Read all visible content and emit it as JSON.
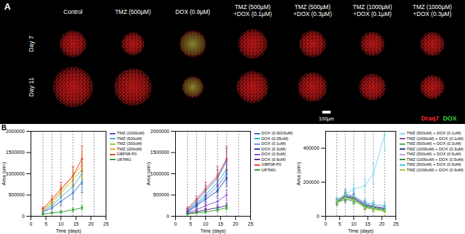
{
  "panel_a": {
    "label": "A",
    "columns": [
      "Control",
      "TMZ (500µM)",
      "DOX (0.9µM)",
      "TMZ (500µM) +DOX (0.1µM)",
      "TMZ (500µM) +DOX (0.3µM)",
      "TMZ (1000µM) +DOX (0.1µM)",
      "TMZ (1000µM) +DOX (0.3µM)"
    ],
    "rows": [
      "Day 7",
      "Day 11"
    ],
    "scale_bar": "100µm",
    "legend": [
      {
        "name": "Draq7",
        "color": "#ff2a2a"
      },
      {
        "name": "DOX",
        "color": "#33dd33"
      }
    ]
  },
  "panel_b": {
    "label": "B"
  },
  "chart_data": [
    {
      "type": "line",
      "x_label": "Time (days)",
      "y_label": "Area (um²)",
      "xlim": [
        0,
        25
      ],
      "xticks": [
        0,
        5,
        10,
        15,
        20,
        25
      ],
      "ylim": [
        0,
        2000000
      ],
      "yticks": [
        0,
        500000,
        1000000,
        1500000,
        2000000
      ],
      "grid": false,
      "legend": "right",
      "dotted_lines": [
        4,
        7,
        10,
        14,
        17,
        21
      ],
      "x": [
        4,
        7,
        10,
        14,
        17
      ],
      "series": [
        {
          "name": "TMZ (1000uM)",
          "color": "#3a5fcd",
          "marker": "circle",
          "values": [
            100000,
            200000,
            350000,
            550000,
            800000
          ],
          "errors": [
            30000,
            60000,
            100000,
            150000,
            250000
          ]
        },
        {
          "name": "TMZ (500uM)",
          "color": "#3fb1e3",
          "marker": "circle",
          "values": [
            120000,
            250000,
            450000,
            700000,
            1000000
          ],
          "errors": [
            30000,
            60000,
            100000,
            150000,
            250000
          ]
        },
        {
          "name": "TMZ (300uM)",
          "color": "#9acd32",
          "marker": "circle",
          "values": [
            150000,
            300000,
            550000,
            850000,
            1100000
          ],
          "errors": [
            30000,
            70000,
            120000,
            180000,
            250000
          ]
        },
        {
          "name": "TMZ (200uM)",
          "color": "#f4a235",
          "marker": "circle",
          "values": [
            150000,
            350000,
            600000,
            950000,
            1200000
          ],
          "errors": [
            30000,
            70000,
            120000,
            200000,
            280000
          ]
        },
        {
          "name": "GBP08-P0",
          "color": "#e8403a",
          "marker": "circle",
          "values": [
            180000,
            400000,
            650000,
            950000,
            1350000
          ],
          "errors": [
            40000,
            80000,
            150000,
            220000,
            300000
          ]
        },
        {
          "name": "U87MG",
          "color": "#2ca02c",
          "marker": "circle",
          "values": [
            50000,
            80000,
            100000,
            150000,
            200000
          ],
          "errors": [
            10000,
            20000,
            30000,
            40000,
            50000
          ]
        }
      ]
    },
    {
      "type": "line",
      "x_label": "Time (days)",
      "y_label": "Area (um²)",
      "xlim": [
        0,
        25
      ],
      "xticks": [
        0,
        5,
        10,
        15,
        20,
        25
      ],
      "ylim": [
        0,
        2000000
      ],
      "yticks": [
        0,
        500000,
        1000000,
        1500000,
        2000000
      ],
      "grid": false,
      "legend": "right",
      "dotted_lines": [
        4,
        7,
        10,
        14,
        17,
        21
      ],
      "x": [
        4,
        7,
        10,
        14,
        17
      ],
      "series": [
        {
          "name": "DOX (0.0015uM)",
          "color": "#2f6fdf",
          "marker": "circle",
          "values": [
            150000,
            350000,
            600000,
            900000,
            1300000
          ],
          "errors": [
            30000,
            70000,
            120000,
            200000,
            300000
          ]
        },
        {
          "name": "DOX (0.05uM)",
          "color": "#1fb3c8",
          "marker": "circle",
          "values": [
            130000,
            300000,
            500000,
            800000,
            1100000
          ],
          "errors": [
            30000,
            60000,
            100000,
            180000,
            250000
          ]
        },
        {
          "name": "DOX (0.1uM)",
          "color": "#6a8cff",
          "marker": "circle",
          "values": [
            120000,
            280000,
            450000,
            700000,
            1000000
          ],
          "errors": [
            30000,
            60000,
            100000,
            150000,
            220000
          ]
        },
        {
          "name": "DOX (0.3uM)",
          "color": "#2a3f9f",
          "marker": "circle",
          "values": [
            100000,
            250000,
            400000,
            600000,
            900000
          ],
          "errors": [
            20000,
            50000,
            80000,
            130000,
            200000
          ]
        },
        {
          "name": "DOX (0.5uM)",
          "color": "#8a4fd0",
          "marker": "circle",
          "values": [
            80000,
            150000,
            250000,
            350000,
            500000
          ],
          "errors": [
            20000,
            30000,
            50000,
            80000,
            120000
          ]
        },
        {
          "name": "DOX (0.9uM)",
          "color": "#5e2b9e",
          "marker": "circle",
          "values": [
            60000,
            100000,
            150000,
            200000,
            250000
          ],
          "errors": [
            10000,
            20000,
            30000,
            40000,
            60000
          ]
        },
        {
          "name": "GBP08-P0",
          "color": "#e8403a",
          "marker": "circle",
          "values": [
            180000,
            400000,
            650000,
            950000,
            1350000
          ],
          "errors": [
            40000,
            80000,
            150000,
            220000,
            300000
          ]
        },
        {
          "name": "U87MG",
          "color": "#2ca02c",
          "marker": "circle",
          "values": [
            50000,
            80000,
            100000,
            150000,
            200000
          ],
          "errors": [
            10000,
            20000,
            30000,
            40000,
            50000
          ]
        }
      ]
    },
    {
      "type": "line",
      "x_label": "Time (days)",
      "y_label": "Area (um²)",
      "xlim": [
        0,
        25
      ],
      "xticks": [
        0,
        5,
        10,
        15,
        20,
        25
      ],
      "ylim": [
        0,
        500000
      ],
      "yticks": [
        0,
        200000,
        400000
      ],
      "grid": false,
      "legend": "right",
      "dotted_lines": [
        4,
        7,
        10,
        14,
        17,
        21
      ],
      "x": [
        4,
        7,
        10,
        14,
        17,
        21
      ],
      "series": [
        {
          "name": "TMZ (500uM) + DOX (0.1uM)",
          "color": "#7fd6f0",
          "marker": "circle",
          "values": [
            90000,
            130000,
            160000,
            180000,
            250000,
            480000
          ],
          "errors": [
            15000,
            25000,
            30000,
            40000,
            60000,
            90000
          ]
        },
        {
          "name": "TMZ (1000uM) + DOX (0.1uM)",
          "color": "#8e44ad",
          "marker": "circle",
          "values": [
            85000,
            120000,
            110000,
            70000,
            60000,
            45000
          ],
          "errors": [
            15000,
            25000,
            25000,
            20000,
            20000,
            15000
          ]
        },
        {
          "name": "TMZ (500uM) + DOX (0.3uM)",
          "color": "#4caf50",
          "marker": "circle",
          "values": [
            80000,
            110000,
            100000,
            60000,
            50000,
            40000
          ],
          "errors": [
            15000,
            25000,
            25000,
            20000,
            15000,
            15000
          ]
        },
        {
          "name": "TMZ (1000uM) + DOX (0.3uM)",
          "color": "#1f3f99",
          "marker": "circle",
          "values": [
            85000,
            115000,
            105000,
            65000,
            55000,
            45000
          ],
          "errors": [
            15000,
            25000,
            25000,
            20000,
            15000,
            15000
          ]
        },
        {
          "name": "TMZ (500uM) + DOX (0.5uM)",
          "color": "#c0a0e0",
          "marker": "circle",
          "values": [
            90000,
            125000,
            115000,
            75000,
            60000,
            50000
          ],
          "errors": [
            15000,
            30000,
            30000,
            20000,
            20000,
            15000
          ]
        },
        {
          "name": "TMZ (1000uM) + DOX (0.5uM)",
          "color": "#2e8b57",
          "marker": "circle",
          "values": [
            80000,
            100000,
            90000,
            55000,
            45000,
            35000
          ],
          "errors": [
            15000,
            20000,
            20000,
            15000,
            15000,
            10000
          ]
        },
        {
          "name": "TMZ (500uM) + DOX (0.9uM)",
          "color": "#40c0e0",
          "marker": "circle",
          "values": [
            95000,
            130000,
            120000,
            80000,
            70000,
            60000
          ],
          "errors": [
            15000,
            30000,
            30000,
            25000,
            20000,
            20000
          ]
        },
        {
          "name": "TMZ (1000uM) + DOX (0.9uM)",
          "color": "#9acd32",
          "marker": "circle",
          "values": [
            85000,
            110000,
            95000,
            50000,
            40000,
            30000
          ],
          "errors": [
            15000,
            25000,
            20000,
            15000,
            15000,
            10000
          ]
        }
      ]
    }
  ]
}
